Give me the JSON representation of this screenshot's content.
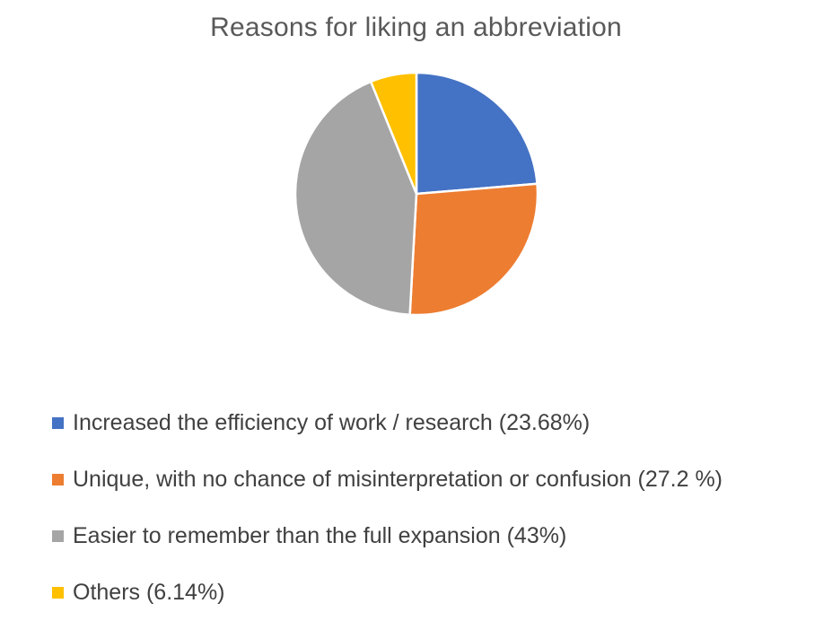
{
  "chart_data": {
    "type": "pie",
    "title": "Reasons for liking an abbreviation",
    "categories": [
      "Increased the efficiency of work / research",
      "Unique, with no chance of misinterpretation or confusion",
      "Easier to remember than the full expansion",
      "Others"
    ],
    "values": [
      23.68,
      27.2,
      43,
      6.14
    ],
    "colors": [
      "#4472C4",
      "#ED7D31",
      "#A5A5A5",
      "#FFC000"
    ],
    "legend": {
      "placement": "bottom",
      "labels": [
        "Increased the efficiency of work / research (23.68%)",
        "Unique, with no chance of misinterpretation or confusion (27.2 %)",
        "Easier to remember than the full expansion (43%)",
        "Others (6.14%)"
      ]
    }
  }
}
